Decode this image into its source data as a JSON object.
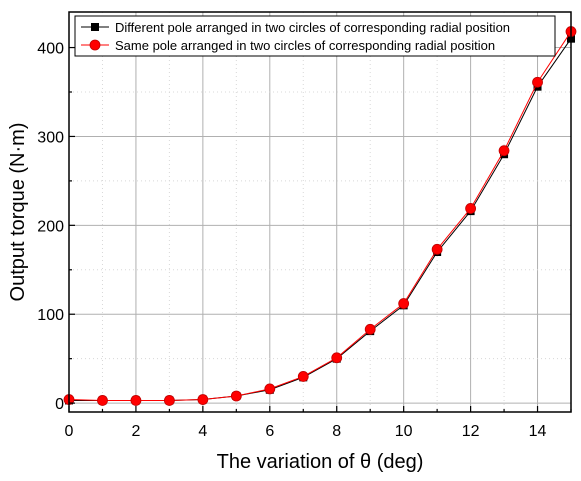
{
  "chart_data": {
    "type": "line",
    "title": "",
    "xlabel": "The variation of θ (deg)",
    "ylabel": "Output torque (N·m)",
    "xlim": [
      0,
      15
    ],
    "ylim": [
      -10,
      440
    ],
    "xticks": [
      0,
      2,
      4,
      6,
      8,
      10,
      12,
      14
    ],
    "yticks": [
      0,
      100,
      200,
      300,
      400
    ],
    "grid": true,
    "legend_position": "top-right",
    "x": [
      0,
      1,
      2,
      3,
      4,
      5,
      6,
      7,
      8,
      9,
      10,
      11,
      12,
      13,
      14,
      15
    ],
    "series": [
      {
        "name": "Different pole arranged in two circles of corresponding radial position",
        "color": "#000000",
        "marker": "square",
        "values": [
          3,
          3,
          3,
          3,
          4,
          8,
          15,
          29,
          50,
          81,
          110,
          170,
          216,
          280,
          356,
          410
        ]
      },
      {
        "name": "Same pole arranged in two circles of corresponding radial position",
        "color": "#ff0000",
        "marker": "circle",
        "values": [
          4,
          3,
          3,
          3,
          4,
          8,
          16,
          30,
          51,
          83,
          112,
          173,
          219,
          284,
          361,
          418
        ]
      }
    ]
  }
}
